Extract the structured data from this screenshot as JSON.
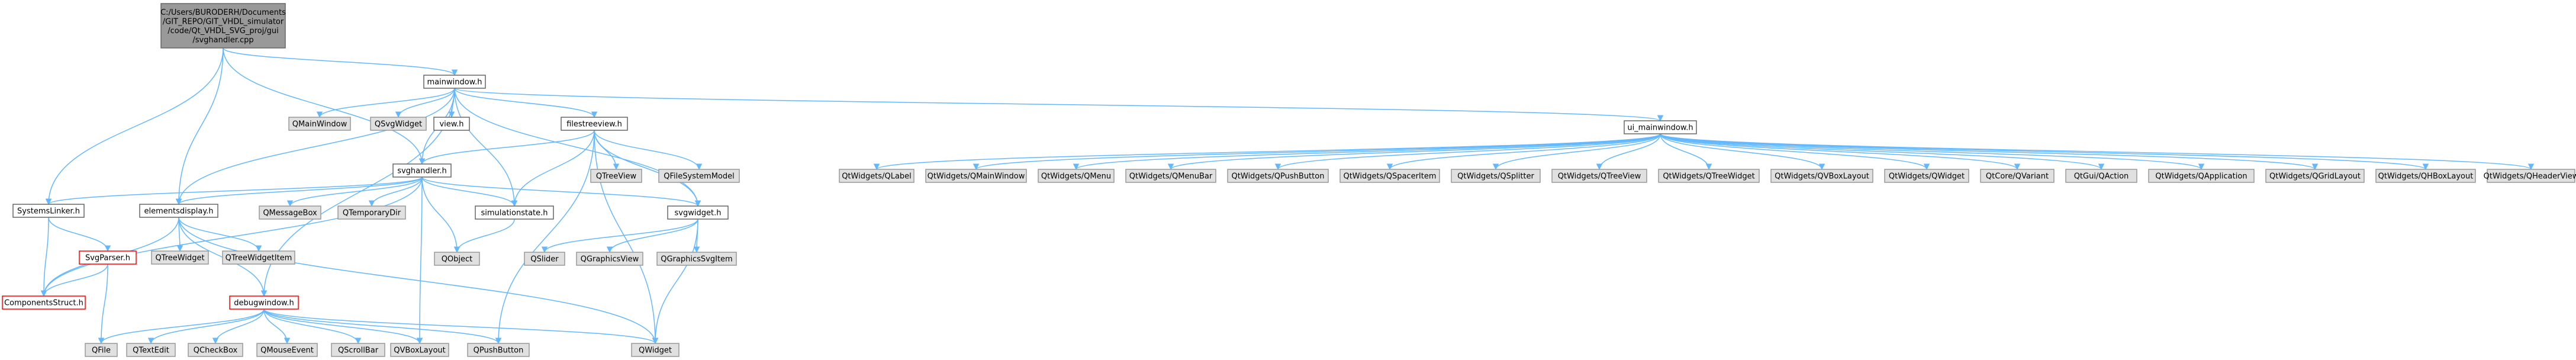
{
  "colors": {
    "root_fill": "#999999",
    "root_stroke": "#666666",
    "local_fill": "#ffffff",
    "local_stroke": "#666666",
    "external_fill": "#e0e0e0",
    "external_stroke": "#999999",
    "missing_stroke": "#ff0000",
    "edge": "#63b8ff"
  },
  "nodes": [
    {
      "id": "root",
      "kind": "root",
      "lines": [
        "C:/Users/BURODERH/Documents",
        "/GIT_REPO/GIT_VHDL_simulator",
        "/code/Qt_VHDL_SVG_proj/gui",
        "/svghandler.cpp"
      ]
    },
    {
      "id": "mainwindow_h",
      "kind": "local",
      "lines": [
        "mainwindow.h"
      ]
    },
    {
      "id": "qmainwindow",
      "kind": "external",
      "lines": [
        "QMainWindow"
      ]
    },
    {
      "id": "qsvgwidget",
      "kind": "external",
      "lines": [
        "QSvgWidget"
      ]
    },
    {
      "id": "view_h",
      "kind": "local",
      "lines": [
        "view.h"
      ]
    },
    {
      "id": "filestreeview_h",
      "kind": "local",
      "lines": [
        "filestreeview.h"
      ]
    },
    {
      "id": "ui_mainwindow_h",
      "kind": "local",
      "lines": [
        "ui_mainwindow.h"
      ]
    },
    {
      "id": "svghandler_h",
      "kind": "local",
      "lines": [
        "svghandler.h"
      ]
    },
    {
      "id": "qtreeview",
      "kind": "external",
      "lines": [
        "QTreeView"
      ]
    },
    {
      "id": "qfilesystemmodel",
      "kind": "external",
      "lines": [
        "QFileSystemModel"
      ]
    },
    {
      "id": "systemslinker_h",
      "kind": "local",
      "lines": [
        "SystemsLinker.h"
      ]
    },
    {
      "id": "elementsdisplay_h",
      "kind": "local",
      "lines": [
        "elementsdisplay.h"
      ]
    },
    {
      "id": "qmessagebox",
      "kind": "external",
      "lines": [
        "QMessageBox"
      ]
    },
    {
      "id": "qtemporarydir",
      "kind": "external",
      "lines": [
        "QTemporaryDir"
      ]
    },
    {
      "id": "simulationstate_h",
      "kind": "local",
      "lines": [
        "simulationstate.h"
      ]
    },
    {
      "id": "svgwidget_h",
      "kind": "local",
      "lines": [
        "svgwidget.h"
      ]
    },
    {
      "id": "qtreewidget",
      "kind": "external",
      "lines": [
        "QTreeWidget"
      ]
    },
    {
      "id": "qtreewidgetitem",
      "kind": "external",
      "lines": [
        "QTreeWidgetItem"
      ]
    },
    {
      "id": "qobject",
      "kind": "external",
      "lines": [
        "QObject"
      ]
    },
    {
      "id": "qslider",
      "kind": "external",
      "lines": [
        "QSlider"
      ]
    },
    {
      "id": "qgraphicsview",
      "kind": "external",
      "lines": [
        "QGraphicsView"
      ]
    },
    {
      "id": "qgraphicssvgitem",
      "kind": "external",
      "lines": [
        "QGraphicsSvgItem"
      ]
    },
    {
      "id": "svgparser_h",
      "kind": "missing",
      "lines": [
        "SvgParser.h"
      ]
    },
    {
      "id": "componentsstruct_h",
      "kind": "missing",
      "lines": [
        "ComponentsStruct.h"
      ]
    },
    {
      "id": "debugwindow_h",
      "kind": "missing",
      "lines": [
        "debugwindow.h"
      ]
    },
    {
      "id": "qfile",
      "kind": "external",
      "lines": [
        "QFile"
      ]
    },
    {
      "id": "qtextedit",
      "kind": "external",
      "lines": [
        "QTextEdit"
      ]
    },
    {
      "id": "qcheckbox",
      "kind": "external",
      "lines": [
        "QCheckBox"
      ]
    },
    {
      "id": "qmouseevent",
      "kind": "external",
      "lines": [
        "QMouseEvent"
      ]
    },
    {
      "id": "qscrollbar",
      "kind": "external",
      "lines": [
        "QScrollBar"
      ]
    },
    {
      "id": "qvboxlayout",
      "kind": "external",
      "lines": [
        "QVBoxLayout"
      ]
    },
    {
      "id": "qpushbutton",
      "kind": "external",
      "lines": [
        "QPushButton"
      ]
    },
    {
      "id": "qwidget",
      "kind": "external",
      "lines": [
        "QWidget"
      ]
    },
    {
      "id": "qw_qlabel",
      "kind": "external",
      "lines": [
        "QtWidgets/QLabel"
      ]
    },
    {
      "id": "qw_qmainwindow",
      "kind": "external",
      "lines": [
        "QtWidgets/QMainWindow"
      ]
    },
    {
      "id": "qw_qmenu",
      "kind": "external",
      "lines": [
        "QtWidgets/QMenu"
      ]
    },
    {
      "id": "qw_qmenubar",
      "kind": "external",
      "lines": [
        "QtWidgets/QMenuBar"
      ]
    },
    {
      "id": "qw_qpushbutton",
      "kind": "external",
      "lines": [
        "QtWidgets/QPushButton"
      ]
    },
    {
      "id": "qw_qspaceritem",
      "kind": "external",
      "lines": [
        "QtWidgets/QSpacerItem"
      ]
    },
    {
      "id": "qw_qsplitter",
      "kind": "external",
      "lines": [
        "QtWidgets/QSplitter"
      ]
    },
    {
      "id": "qw_qtreeview",
      "kind": "external",
      "lines": [
        "QtWidgets/QTreeView"
      ]
    },
    {
      "id": "qw_qtreewidget",
      "kind": "external",
      "lines": [
        "QtWidgets/QTreeWidget"
      ]
    },
    {
      "id": "qw_qvboxlayout",
      "kind": "external",
      "lines": [
        "QtWidgets/QVBoxLayout"
      ]
    },
    {
      "id": "qw_qwidget",
      "kind": "external",
      "lines": [
        "QtWidgets/QWidget"
      ]
    },
    {
      "id": "qtcore_qvariant",
      "kind": "external",
      "lines": [
        "QtCore/QVariant"
      ]
    },
    {
      "id": "qtgui_qaction",
      "kind": "external",
      "lines": [
        "QtGui/QAction"
      ]
    },
    {
      "id": "qw_qapplication",
      "kind": "external",
      "lines": [
        "QtWidgets/QApplication"
      ]
    },
    {
      "id": "qw_qgridlayout",
      "kind": "external",
      "lines": [
        "QtWidgets/QGridLayout"
      ]
    },
    {
      "id": "qw_qhboxlayout",
      "kind": "external",
      "lines": [
        "QtWidgets/QHBoxLayout"
      ]
    },
    {
      "id": "qw_qheaderview",
      "kind": "external",
      "lines": [
        "QtWidgets/QHeaderView"
      ]
    }
  ],
  "edges": [
    [
      "root",
      "mainwindow_h"
    ],
    [
      "root",
      "svghandler_h"
    ],
    [
      "root",
      "systemslinker_h"
    ],
    [
      "root",
      "elementsdisplay_h"
    ],
    [
      "mainwindow_h",
      "qmainwindow"
    ],
    [
      "mainwindow_h",
      "qsvgwidget"
    ],
    [
      "mainwindow_h",
      "view_h"
    ],
    [
      "mainwindow_h",
      "filestreeview_h"
    ],
    [
      "mainwindow_h",
      "ui_mainwindow_h"
    ],
    [
      "mainwindow_h",
      "svghandler_h"
    ],
    [
      "mainwindow_h",
      "elementsdisplay_h"
    ],
    [
      "mainwindow_h",
      "simulationstate_h"
    ],
    [
      "mainwindow_h",
      "svgwidget_h"
    ],
    [
      "mainwindow_h",
      "debugwindow_h"
    ],
    [
      "filestreeview_h",
      "qtreeview"
    ],
    [
      "filestreeview_h",
      "qfilesystemmodel"
    ],
    [
      "filestreeview_h",
      "svghandler_h"
    ],
    [
      "filestreeview_h",
      "simulationstate_h"
    ],
    [
      "filestreeview_h",
      "svgwidget_h"
    ],
    [
      "filestreeview_h",
      "qpushbutton"
    ],
    [
      "filestreeview_h",
      "qwidget"
    ],
    [
      "svghandler_h",
      "systemslinker_h"
    ],
    [
      "svghandler_h",
      "elementsdisplay_h"
    ],
    [
      "svghandler_h",
      "qmessagebox"
    ],
    [
      "svghandler_h",
      "qtemporarydir"
    ],
    [
      "svghandler_h",
      "simulationstate_h"
    ],
    [
      "svghandler_h",
      "svgwidget_h"
    ],
    [
      "svghandler_h",
      "qobject"
    ],
    [
      "svghandler_h",
      "componentsstruct_h"
    ],
    [
      "svghandler_h",
      "qvboxlayout"
    ],
    [
      "systemslinker_h",
      "svgparser_h"
    ],
    [
      "systemslinker_h",
      "componentsstruct_h"
    ],
    [
      "svgparser_h",
      "componentsstruct_h"
    ],
    [
      "svgparser_h",
      "qfile"
    ],
    [
      "elementsdisplay_h",
      "qtreewidget"
    ],
    [
      "elementsdisplay_h",
      "qtreewidgetitem"
    ],
    [
      "elementsdisplay_h",
      "componentsstruct_h"
    ],
    [
      "elementsdisplay_h",
      "debugwindow_h"
    ],
    [
      "elementsdisplay_h",
      "qwidget"
    ],
    [
      "simulationstate_h",
      "qobject"
    ],
    [
      "svgwidget_h",
      "qslider"
    ],
    [
      "svgwidget_h",
      "qgraphicsview"
    ],
    [
      "svgwidget_h",
      "qgraphicssvgitem"
    ],
    [
      "svgwidget_h",
      "qwidget"
    ],
    [
      "debugwindow_h",
      "qfile"
    ],
    [
      "debugwindow_h",
      "qtextedit"
    ],
    [
      "debugwindow_h",
      "qcheckbox"
    ],
    [
      "debugwindow_h",
      "qmouseevent"
    ],
    [
      "debugwindow_h",
      "qscrollbar"
    ],
    [
      "debugwindow_h",
      "qvboxlayout"
    ],
    [
      "debugwindow_h",
      "qpushbutton"
    ],
    [
      "debugwindow_h",
      "qwidget"
    ],
    [
      "ui_mainwindow_h",
      "qw_qlabel"
    ],
    [
      "ui_mainwindow_h",
      "qw_qmainwindow"
    ],
    [
      "ui_mainwindow_h",
      "qw_qmenu"
    ],
    [
      "ui_mainwindow_h",
      "qw_qmenubar"
    ],
    [
      "ui_mainwindow_h",
      "qw_qpushbutton"
    ],
    [
      "ui_mainwindow_h",
      "qw_qspaceritem"
    ],
    [
      "ui_mainwindow_h",
      "qw_qsplitter"
    ],
    [
      "ui_mainwindow_h",
      "qw_qtreeview"
    ],
    [
      "ui_mainwindow_h",
      "qw_qtreewidget"
    ],
    [
      "ui_mainwindow_h",
      "qw_qvboxlayout"
    ],
    [
      "ui_mainwindow_h",
      "qw_qwidget"
    ],
    [
      "ui_mainwindow_h",
      "qtcore_qvariant"
    ],
    [
      "ui_mainwindow_h",
      "qtgui_qaction"
    ],
    [
      "ui_mainwindow_h",
      "qw_qapplication"
    ],
    [
      "ui_mainwindow_h",
      "qw_qgridlayout"
    ],
    [
      "ui_mainwindow_h",
      "qw_qhboxlayout"
    ],
    [
      "ui_mainwindow_h",
      "qw_qheaderview"
    ]
  ]
}
